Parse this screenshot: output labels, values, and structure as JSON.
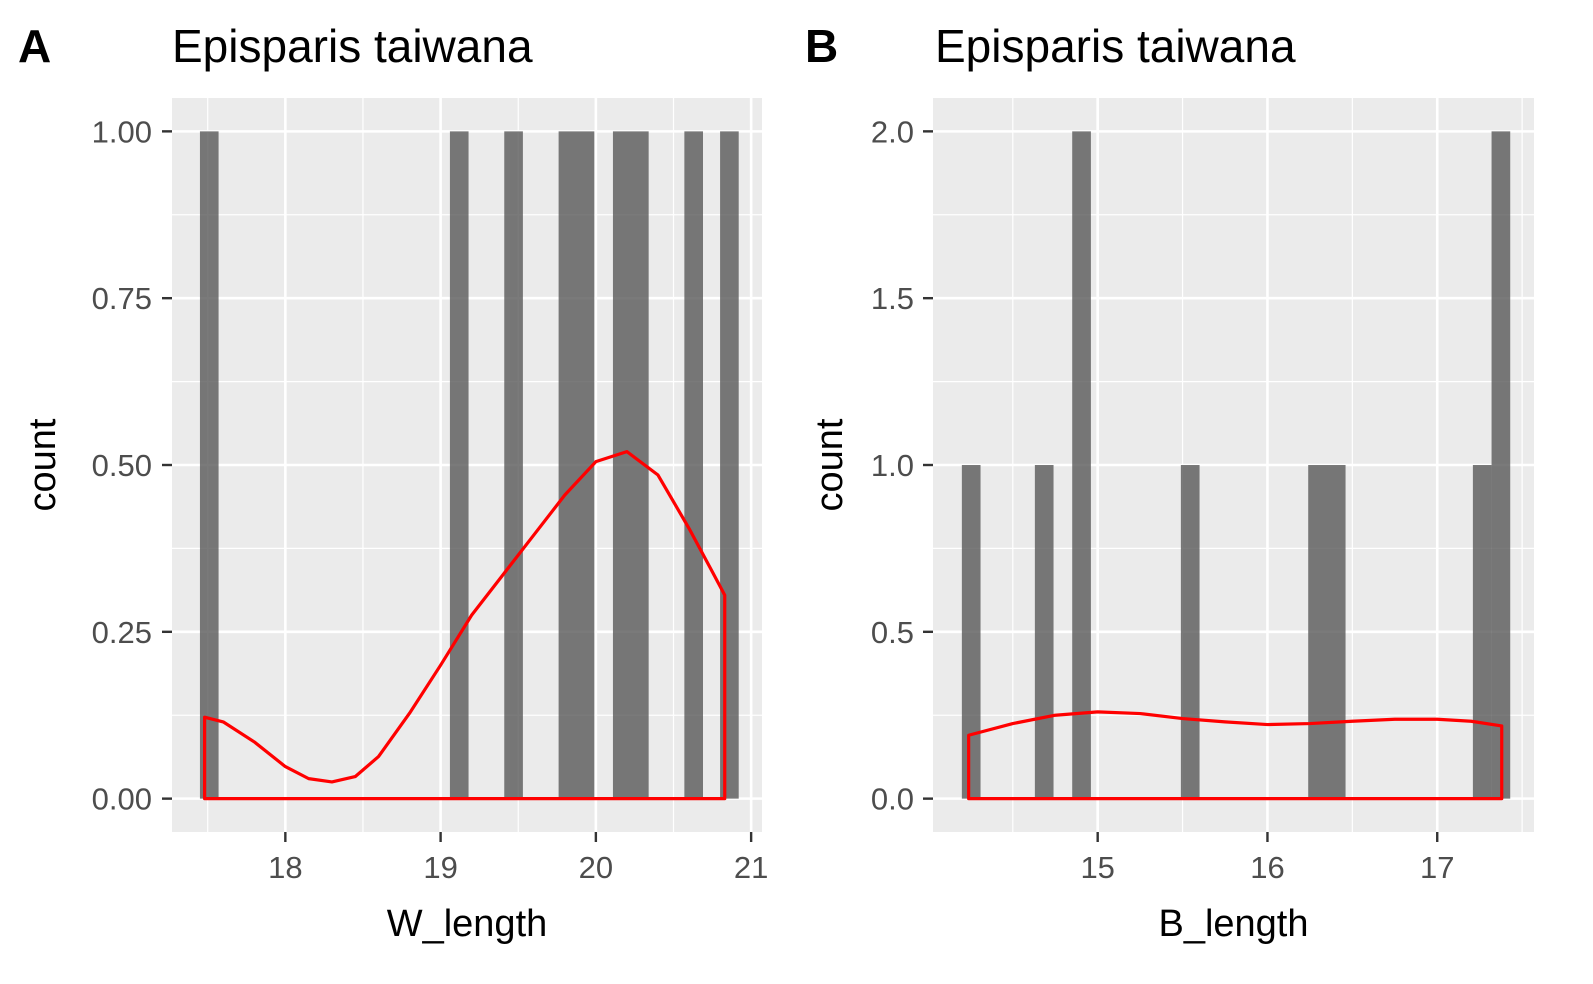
{
  "chart_data": [
    {
      "type": "bar",
      "panel_label": "A",
      "title": "Episparis taiwana",
      "xlabel": "W_length",
      "ylabel": "count",
      "xlim": [
        17.27,
        21.07
      ],
      "ylim": [
        -0.05,
        1.05
      ],
      "x_ticks": [
        18,
        19,
        20,
        21
      ],
      "x_tick_labels": [
        "18",
        "19",
        "20",
        "21"
      ],
      "y_ticks": [
        0,
        0.25,
        0.5,
        0.75,
        1.0
      ],
      "y_tick_labels": [
        "0.00",
        "0.25",
        "0.50",
        "0.75",
        "1.00"
      ],
      "bars": [
        {
          "x0": 17.45,
          "x1": 17.57,
          "count": 1
        },
        {
          "x0": 19.06,
          "x1": 19.18,
          "count": 1
        },
        {
          "x0": 19.41,
          "x1": 19.53,
          "count": 1
        },
        {
          "x0": 19.76,
          "x1": 19.99,
          "count": 1
        },
        {
          "x0": 20.11,
          "x1": 20.34,
          "count": 1
        },
        {
          "x0": 20.57,
          "x1": 20.69,
          "count": 1
        },
        {
          "x0": 20.8,
          "x1": 20.92,
          "count": 1
        }
      ],
      "density_curve": {
        "color": "#ff0000",
        "x": [
          17.48,
          17.6,
          17.8,
          18.0,
          18.15,
          18.3,
          18.45,
          18.6,
          18.8,
          19.0,
          19.2,
          19.4,
          19.6,
          19.8,
          20.0,
          20.2,
          20.4,
          20.6,
          20.75,
          20.83
        ],
        "y": [
          0.122,
          0.115,
          0.085,
          0.048,
          0.03,
          0.025,
          0.033,
          0.063,
          0.128,
          0.2,
          0.275,
          0.335,
          0.395,
          0.455,
          0.505,
          0.52,
          0.485,
          0.405,
          0.34,
          0.305
        ]
      },
      "bar_color": "#595959",
      "panel_background": "#ebebeb"
    },
    {
      "type": "bar",
      "panel_label": "B",
      "title": "Episparis taiwana",
      "xlabel": "B_length",
      "ylabel": "count",
      "xlim": [
        14.03,
        17.57
      ],
      "ylim": [
        -0.1,
        2.1
      ],
      "x_ticks": [
        15,
        16,
        17
      ],
      "x_tick_labels": [
        "15",
        "16",
        "17"
      ],
      "y_ticks": [
        0,
        0.5,
        1.0,
        1.5,
        2.0
      ],
      "y_tick_labels": [
        "0.0",
        "0.5",
        "1.0",
        "1.5",
        "2.0"
      ],
      "bars": [
        {
          "x0": 14.2,
          "x1": 14.31,
          "count": 1
        },
        {
          "x0": 14.63,
          "x1": 14.74,
          "count": 1
        },
        {
          "x0": 14.85,
          "x1": 14.96,
          "count": 2
        },
        {
          "x0": 15.49,
          "x1": 15.6,
          "count": 1
        },
        {
          "x0": 16.24,
          "x1": 16.46,
          "count": 1
        },
        {
          "x0": 17.21,
          "x1": 17.32,
          "count": 1
        },
        {
          "x0": 17.32,
          "x1": 17.43,
          "count": 2
        }
      ],
      "density_curve": {
        "color": "#ff0000",
        "x": [
          14.24,
          14.5,
          14.75,
          15.0,
          15.25,
          15.5,
          15.75,
          16.0,
          16.25,
          16.5,
          16.75,
          17.0,
          17.2,
          17.38
        ],
        "y": [
          0.19,
          0.225,
          0.25,
          0.26,
          0.255,
          0.24,
          0.23,
          0.222,
          0.225,
          0.232,
          0.238,
          0.238,
          0.232,
          0.218
        ]
      },
      "bar_color": "#595959",
      "panel_background": "#ebebeb"
    }
  ]
}
